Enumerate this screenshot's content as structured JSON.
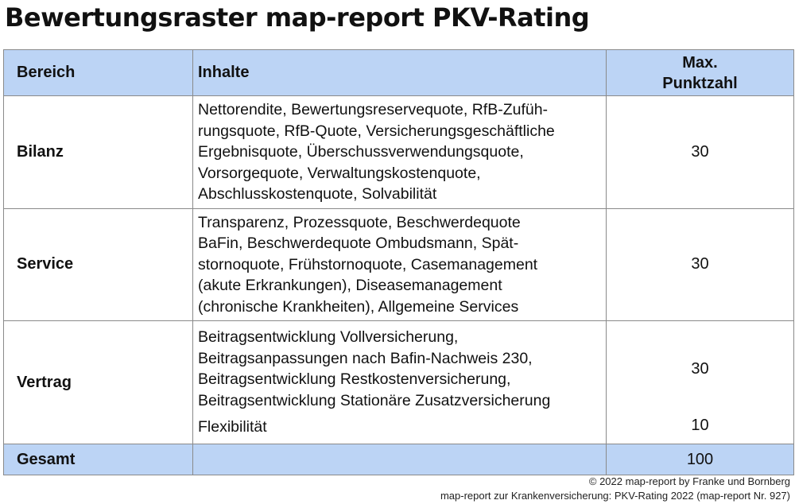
{
  "title": "Bewertungsraster map-report PKV-Rating",
  "table": {
    "headers": {
      "bereich": "Bereich",
      "inhalte": "Inhalte",
      "punkte_line1": "Max.",
      "punkte_line2": "Punktzahl"
    },
    "rows": [
      {
        "bereich": "Bilanz",
        "inhalte": [
          "Nettorendite, Bewertungsreservequote, RfB-Zufüh-",
          "rungsquote, RfB-Quote, Versicherungsgeschäftliche",
          "Ergebnisquote, Überschussverwendungsquote,",
          "Vorsorgequote, Verwaltungskostenquote,",
          "Abschlusskostenquote, Solvabilität"
        ],
        "punkte": "30"
      },
      {
        "bereich": "Service",
        "inhalte": [
          "Transparenz, Prozessquote, Beschwerdequote",
          "BaFin, Beschwerdequote Ombudsmann, Spät-",
          "stornoquote, Frühstornoquote, Casemanagement",
          "(akute Erkrankungen), Diseasemanagement",
          "(chronische Krankheiten), Allgemeine Services"
        ],
        "punkte": "30"
      },
      {
        "bereich": "Vertrag",
        "inhalte": [
          "Beitragsentwicklung Vollversicherung,",
          "Beitragsanpassungen nach Bafin-Nachweis 230,",
          "Beitragsentwicklung Restkostenversicherung,",
          "Beitragsentwicklung Stationäre Zusatzversicherung"
        ],
        "punkte": "30",
        "sub_inhalte": "Flexibilität",
        "sub_punkte": "10"
      }
    ],
    "total": {
      "label": "Gesamt",
      "punkte": "100"
    }
  },
  "credits": {
    "line1": "© 2022 map-report by Franke und Bornberg",
    "line2": "map-report zur Krankenversicherung: PKV-Rating 2022 (map-report Nr. 927)"
  }
}
